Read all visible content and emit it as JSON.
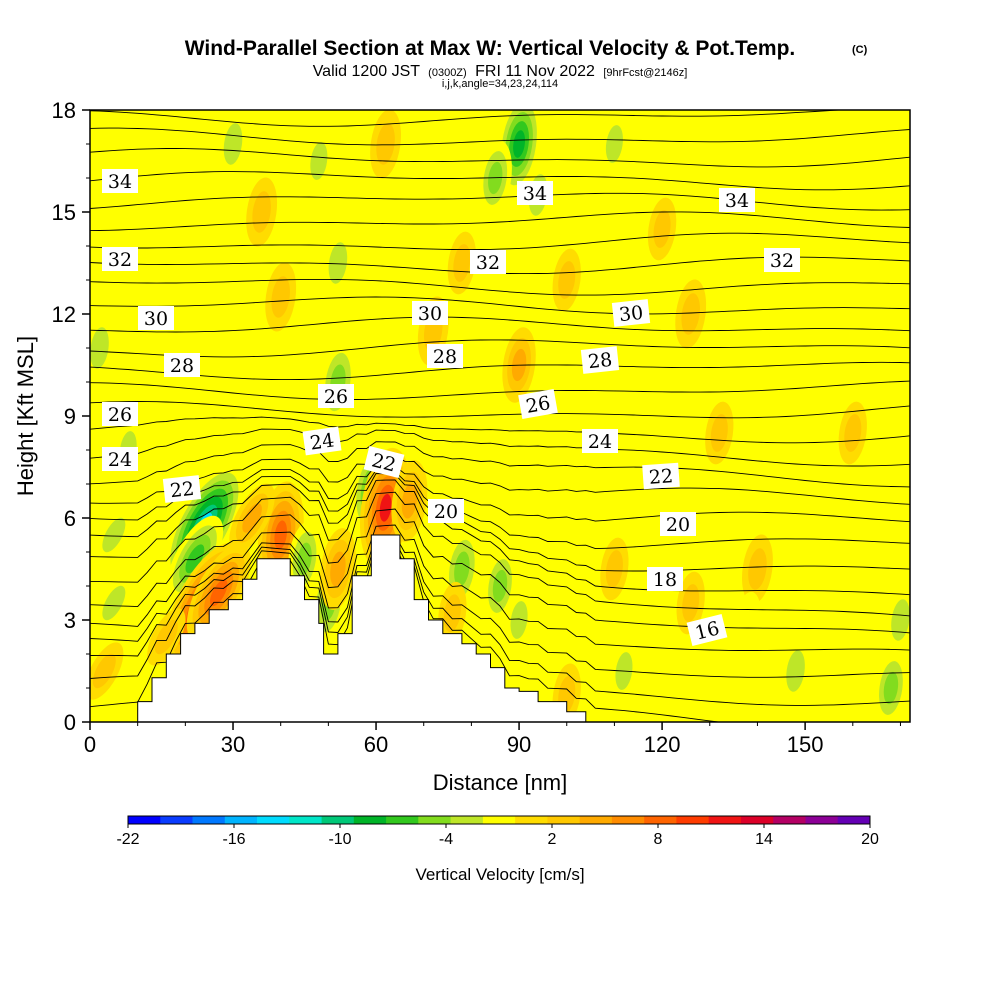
{
  "title": {
    "main": "Wind-Parallel Section at Max W: Vertical Velocity & Pot.Temp.",
    "copyright": "(C)",
    "valid_prefix": "Valid 1200 JST",
    "valid_utc": "(0300Z)",
    "valid_date": "FRI 11 Nov 2022",
    "forecast": "[9hrFcst@2146z]",
    "params": "i,j,k,angle=34,23,24,114"
  },
  "chart_data": {
    "type": "heatmap",
    "xlabel": "Distance [nm]",
    "ylabel": "Height [Kft MSL]",
    "xlim": [
      0,
      172
    ],
    "ylim": [
      0,
      18
    ],
    "x_ticks": [
      "0",
      "30",
      "60",
      "90",
      "120",
      "150"
    ],
    "y_ticks": [
      "0",
      "3",
      "6",
      "9",
      "12",
      "15",
      "18"
    ],
    "colorbar": {
      "label": "Vertical Velocity [cm/s]",
      "tick_labels": [
        "-22",
        "-16",
        "-10",
        "-4",
        "2",
        "8",
        "14",
        "20"
      ],
      "colors": [
        "#0000ff",
        "#0a3cff",
        "#0078ff",
        "#00b4ff",
        "#00dcff",
        "#00e6c8",
        "#00c878",
        "#00b428",
        "#32c81e",
        "#82dc1e",
        "#bee628",
        "#ffff00",
        "#ffdc00",
        "#ffc800",
        "#ffaa00",
        "#ff8c00",
        "#ff6400",
        "#ff3c00",
        "#f01414",
        "#dc0028",
        "#b40064",
        "#8c0096",
        "#6400b4"
      ]
    },
    "isentropes": {
      "label_values": [
        "34",
        "34",
        "34",
        "32",
        "32",
        "32",
        "30",
        "30",
        "30",
        "28",
        "28",
        "28",
        "26",
        "26",
        "26",
        "24",
        "24",
        "24",
        "22",
        "22",
        "22",
        "20",
        "20",
        "18",
        "16"
      ]
    },
    "anomalies": [
      {
        "x": 24,
        "y": 5.8,
        "value": -14
      },
      {
        "x": 22,
        "y": 4.8,
        "value": -8
      },
      {
        "x": 24,
        "y": 3.5,
        "value": 14
      },
      {
        "x": 27,
        "y": 3.8,
        "value": 10
      },
      {
        "x": 40,
        "y": 5.5,
        "value": 10
      },
      {
        "x": 34,
        "y": 6.0,
        "value": 5
      },
      {
        "x": 45,
        "y": 4.8,
        "value": -5
      },
      {
        "x": 50,
        "y": 3.5,
        "value": -6
      },
      {
        "x": 52,
        "y": 4.5,
        "value": 6
      },
      {
        "x": 59,
        "y": 6.8,
        "value": -7
      },
      {
        "x": 62,
        "y": 6.3,
        "value": 12
      },
      {
        "x": 67,
        "y": 6.5,
        "value": 6
      },
      {
        "x": 78,
        "y": 4.5,
        "value": -6
      },
      {
        "x": 86,
        "y": 4.0,
        "value": -5
      },
      {
        "x": 90,
        "y": 3.0,
        "value": -3
      },
      {
        "x": 76,
        "y": 3.2,
        "value": 3
      },
      {
        "x": 2,
        "y": 11.0,
        "value": -4
      },
      {
        "x": 8,
        "y": 8.0,
        "value": -3
      },
      {
        "x": 5,
        "y": 5.5,
        "value": -3
      },
      {
        "x": 5,
        "y": 3.5,
        "value": -3
      },
      {
        "x": 52,
        "y": 10.0,
        "value": -6
      },
      {
        "x": 52,
        "y": 13.5,
        "value": -4
      },
      {
        "x": 48,
        "y": 16.5,
        "value": -3
      },
      {
        "x": 90,
        "y": 17.0,
        "value": -9
      },
      {
        "x": 85,
        "y": 16.0,
        "value": -5
      },
      {
        "x": 94,
        "y": 15.5,
        "value": -4
      },
      {
        "x": 110,
        "y": 17.0,
        "value": -3
      },
      {
        "x": 30,
        "y": 17.0,
        "value": -4
      },
      {
        "x": 36,
        "y": 15.0,
        "value": 4
      },
      {
        "x": 62,
        "y": 17.0,
        "value": 4
      },
      {
        "x": 40,
        "y": 12.5,
        "value": 4
      },
      {
        "x": 72,
        "y": 11.5,
        "value": 4
      },
      {
        "x": 90,
        "y": 10.5,
        "value": 5
      },
      {
        "x": 78,
        "y": 13.5,
        "value": 3
      },
      {
        "x": 126,
        "y": 12.0,
        "value": 4
      },
      {
        "x": 120,
        "y": 14.5,
        "value": 3
      },
      {
        "x": 132,
        "y": 8.5,
        "value": 3
      },
      {
        "x": 140,
        "y": 4.5,
        "value": 4
      },
      {
        "x": 110,
        "y": 4.5,
        "value": 3
      },
      {
        "x": 126,
        "y": 3.5,
        "value": 3
      },
      {
        "x": 148,
        "y": 1.5,
        "value": -4
      },
      {
        "x": 168,
        "y": 1.0,
        "value": -5
      },
      {
        "x": 112,
        "y": 1.5,
        "value": -3
      },
      {
        "x": 170,
        "y": 3.0,
        "value": -4
      },
      {
        "x": 138,
        "y": 3.0,
        "value": -2
      },
      {
        "x": 100,
        "y": 0.8,
        "value": 3
      },
      {
        "x": 16,
        "y": 2.5,
        "value": 3
      },
      {
        "x": 3,
        "y": 1.5,
        "value": 3
      },
      {
        "x": 160,
        "y": 8.5,
        "value": 3
      },
      {
        "x": 100,
        "y": 13.0,
        "value": 3
      }
    ],
    "terrain_profile": [
      [
        0,
        0
      ],
      [
        10,
        0
      ],
      [
        10,
        0.6
      ],
      [
        13,
        0.6
      ],
      [
        13,
        1.3
      ],
      [
        16,
        1.3
      ],
      [
        16,
        2.0
      ],
      [
        19,
        2.0
      ],
      [
        19,
        2.6
      ],
      [
        22,
        2.6
      ],
      [
        22,
        2.9
      ],
      [
        25,
        2.9
      ],
      [
        25,
        3.3
      ],
      [
        29,
        3.3
      ],
      [
        29,
        3.6
      ],
      [
        32,
        3.6
      ],
      [
        32,
        4.2
      ],
      [
        35,
        4.2
      ],
      [
        35,
        4.8
      ],
      [
        42,
        4.8
      ],
      [
        42,
        4.3
      ],
      [
        45,
        4.3
      ],
      [
        45,
        3.6
      ],
      [
        48,
        3.6
      ],
      [
        48,
        2.9
      ],
      [
        49,
        2.9
      ],
      [
        49,
        2.0
      ],
      [
        52,
        2.0
      ],
      [
        52,
        2.6
      ],
      [
        55,
        2.6
      ],
      [
        55,
        4.3
      ],
      [
        59,
        4.3
      ],
      [
        59,
        5.5
      ],
      [
        65,
        5.5
      ],
      [
        65,
        4.8
      ],
      [
        68,
        4.8
      ],
      [
        68,
        3.6
      ],
      [
        71,
        3.6
      ],
      [
        71,
        3.0
      ],
      [
        74,
        3.0
      ],
      [
        74,
        2.6
      ],
      [
        78,
        2.6
      ],
      [
        78,
        2.3
      ],
      [
        81,
        2.3
      ],
      [
        81,
        2.0
      ],
      [
        84,
        2.0
      ],
      [
        84,
        1.6
      ],
      [
        87,
        1.6
      ],
      [
        87,
        1.0
      ],
      [
        90,
        1.0
      ],
      [
        90,
        0.9
      ],
      [
        94,
        0.9
      ],
      [
        94,
        0.6
      ],
      [
        97,
        0.6
      ],
      [
        97,
        0.6
      ],
      [
        100,
        0.6
      ],
      [
        100,
        0.3
      ],
      [
        104,
        0.3
      ],
      [
        104,
        0
      ],
      [
        172,
        0
      ]
    ]
  }
}
